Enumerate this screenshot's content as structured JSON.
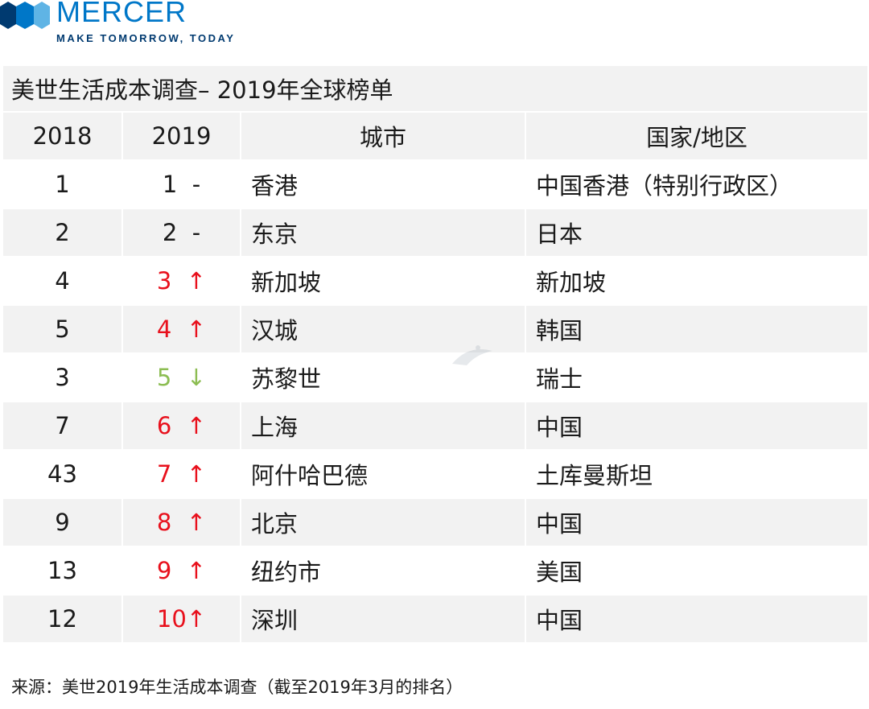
{
  "logo": {
    "brand": "MERCER",
    "tagline": "MAKE TOMORROW, TODAY",
    "colors": {
      "blue": "#0077c8",
      "navy": "#003a70",
      "light": "#5fb4e5"
    }
  },
  "table": {
    "title": "美世生活成本调查– 2019年全球榜单",
    "headers": {
      "prev": "2018",
      "curr": "2019",
      "city": "城市",
      "country": "国家/地区"
    },
    "rows": [
      {
        "prev": "1",
        "curr": "1",
        "trend": "same",
        "trend_symbol": "-",
        "city": "香港",
        "country": "中国香港（特别行政区）"
      },
      {
        "prev": "2",
        "curr": "2",
        "trend": "same",
        "trend_symbol": "-",
        "city": "东京",
        "country": "日本"
      },
      {
        "prev": "4",
        "curr": "3",
        "trend": "up",
        "trend_symbol": "↑",
        "city": "新加坡",
        "country": "新加坡"
      },
      {
        "prev": "5",
        "curr": "4",
        "trend": "up",
        "trend_symbol": "↑",
        "city": "汉城",
        "country": "韩国"
      },
      {
        "prev": "3",
        "curr": "5",
        "trend": "down",
        "trend_symbol": "↓",
        "city": "苏黎世",
        "country": "瑞士"
      },
      {
        "prev": "7",
        "curr": "6",
        "trend": "up",
        "trend_symbol": "↑",
        "city": "上海",
        "country": "中国"
      },
      {
        "prev": "43",
        "curr": "7",
        "trend": "up",
        "trend_symbol": "↑",
        "city": "阿什哈巴德",
        "country": "土库曼斯坦"
      },
      {
        "prev": "9",
        "curr": "8",
        "trend": "up",
        "trend_symbol": "↑",
        "city": "北京",
        "country": "中国"
      },
      {
        "prev": "13",
        "curr": "9",
        "trend": "up",
        "trend_symbol": "↑",
        "city": "纽约市",
        "country": "美国"
      },
      {
        "prev": "12",
        "curr": "10",
        "trend": "up",
        "trend_symbol": "↑",
        "city": "深圳",
        "country": "中国"
      }
    ],
    "colors": {
      "up": "#e8101c",
      "down": "#8cbd52",
      "stripe": "#f2f2f2"
    }
  },
  "source": "来源：美世2019年生活成本调查（截至2019年3月的排名）"
}
